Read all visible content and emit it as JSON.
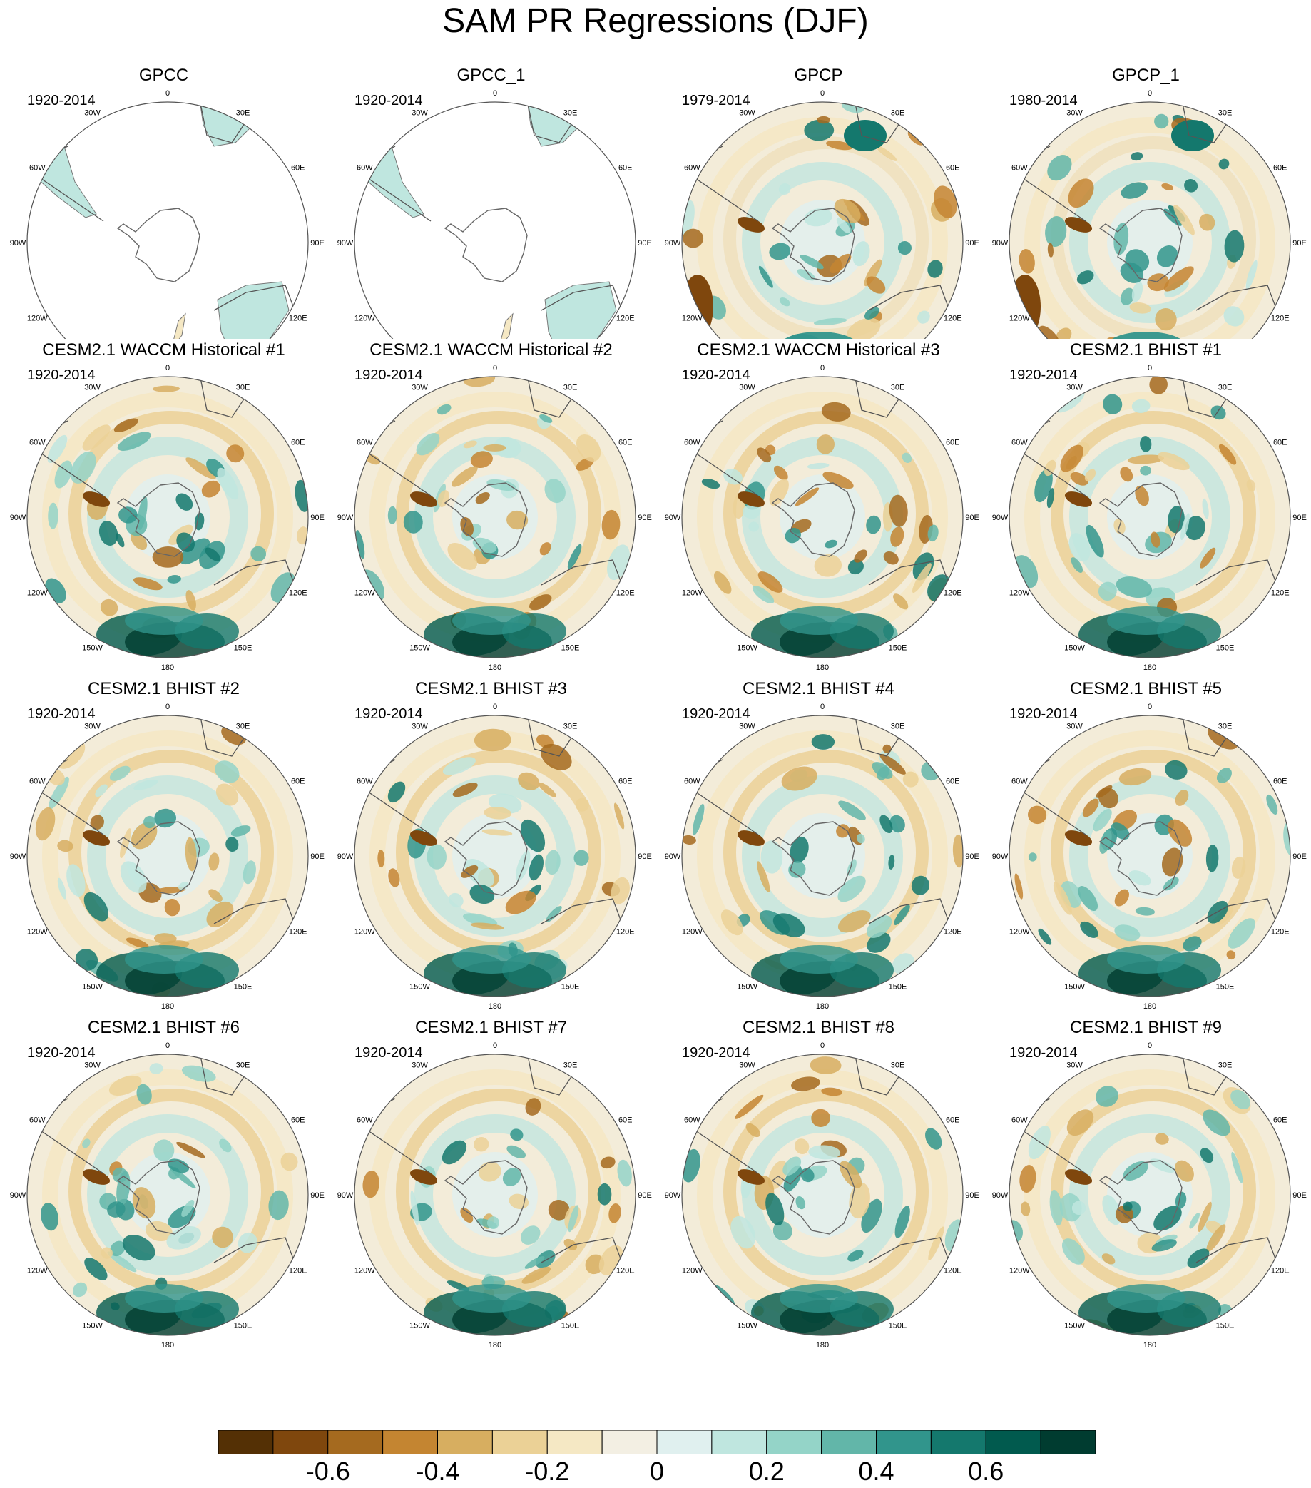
{
  "title": "SAM PR Regressions (DJF)",
  "map_labels": {
    "lon": [
      "0",
      "30E",
      "60E",
      "90E",
      "120E",
      "150E",
      "180",
      "150W",
      "120W",
      "90W",
      "60W",
      "30W"
    ]
  },
  "panels": [
    {
      "title": "GPCC",
      "period": "1920-2014",
      "style": "land"
    },
    {
      "title": "GPCC_1",
      "period": "1920-2014",
      "style": "land"
    },
    {
      "title": "GPCP",
      "period": "1979-2014",
      "style": "obs"
    },
    {
      "title": "GPCP_1",
      "period": "1980-2014",
      "style": "obs"
    },
    {
      "title": "CESM2.1 WACCM Historical #1",
      "period": "1920-2014",
      "style": "model"
    },
    {
      "title": "CESM2.1 WACCM Historical #2",
      "period": "1920-2014",
      "style": "model"
    },
    {
      "title": "CESM2.1 WACCM Historical #3",
      "period": "1920-2014",
      "style": "model"
    },
    {
      "title": "CESM2.1 BHIST #1",
      "period": "1920-2014",
      "style": "model"
    },
    {
      "title": "CESM2.1 BHIST #2",
      "period": "1920-2014",
      "style": "model"
    },
    {
      "title": "CESM2.1 BHIST #3",
      "period": "1920-2014",
      "style": "model"
    },
    {
      "title": "CESM2.1 BHIST #4",
      "period": "1920-2014",
      "style": "model"
    },
    {
      "title": "CESM2.1 BHIST #5",
      "period": "1920-2014",
      "style": "model"
    },
    {
      "title": "CESM2.1 BHIST #6",
      "period": "1920-2014",
      "style": "model"
    },
    {
      "title": "CESM2.1 BHIST #7",
      "period": "1920-2014",
      "style": "model"
    },
    {
      "title": "CESM2.1 BHIST #8",
      "period": "1920-2014",
      "style": "model"
    },
    {
      "title": "CESM2.1 BHIST #9",
      "period": "1920-2014",
      "style": "model"
    }
  ],
  "colorbar": {
    "colors": [
      "#543005",
      "#7f470d",
      "#a56a1f",
      "#c48531",
      "#d7ae60",
      "#ebd196",
      "#f5e8c4",
      "#f3efe3",
      "#e0f0ef",
      "#bfe6df",
      "#94d4c8",
      "#62b6a9",
      "#31958c",
      "#14786d",
      "#015a4e",
      "#003c30"
    ],
    "labels": [
      "-0.6",
      "-0.4",
      "-0.2",
      "0",
      "0.2",
      "0.4",
      "0.6"
    ],
    "label_values": [
      -0.6,
      -0.4,
      -0.2,
      0,
      0.2,
      0.4,
      0.6
    ],
    "range": [
      -0.8,
      0.8
    ]
  }
}
